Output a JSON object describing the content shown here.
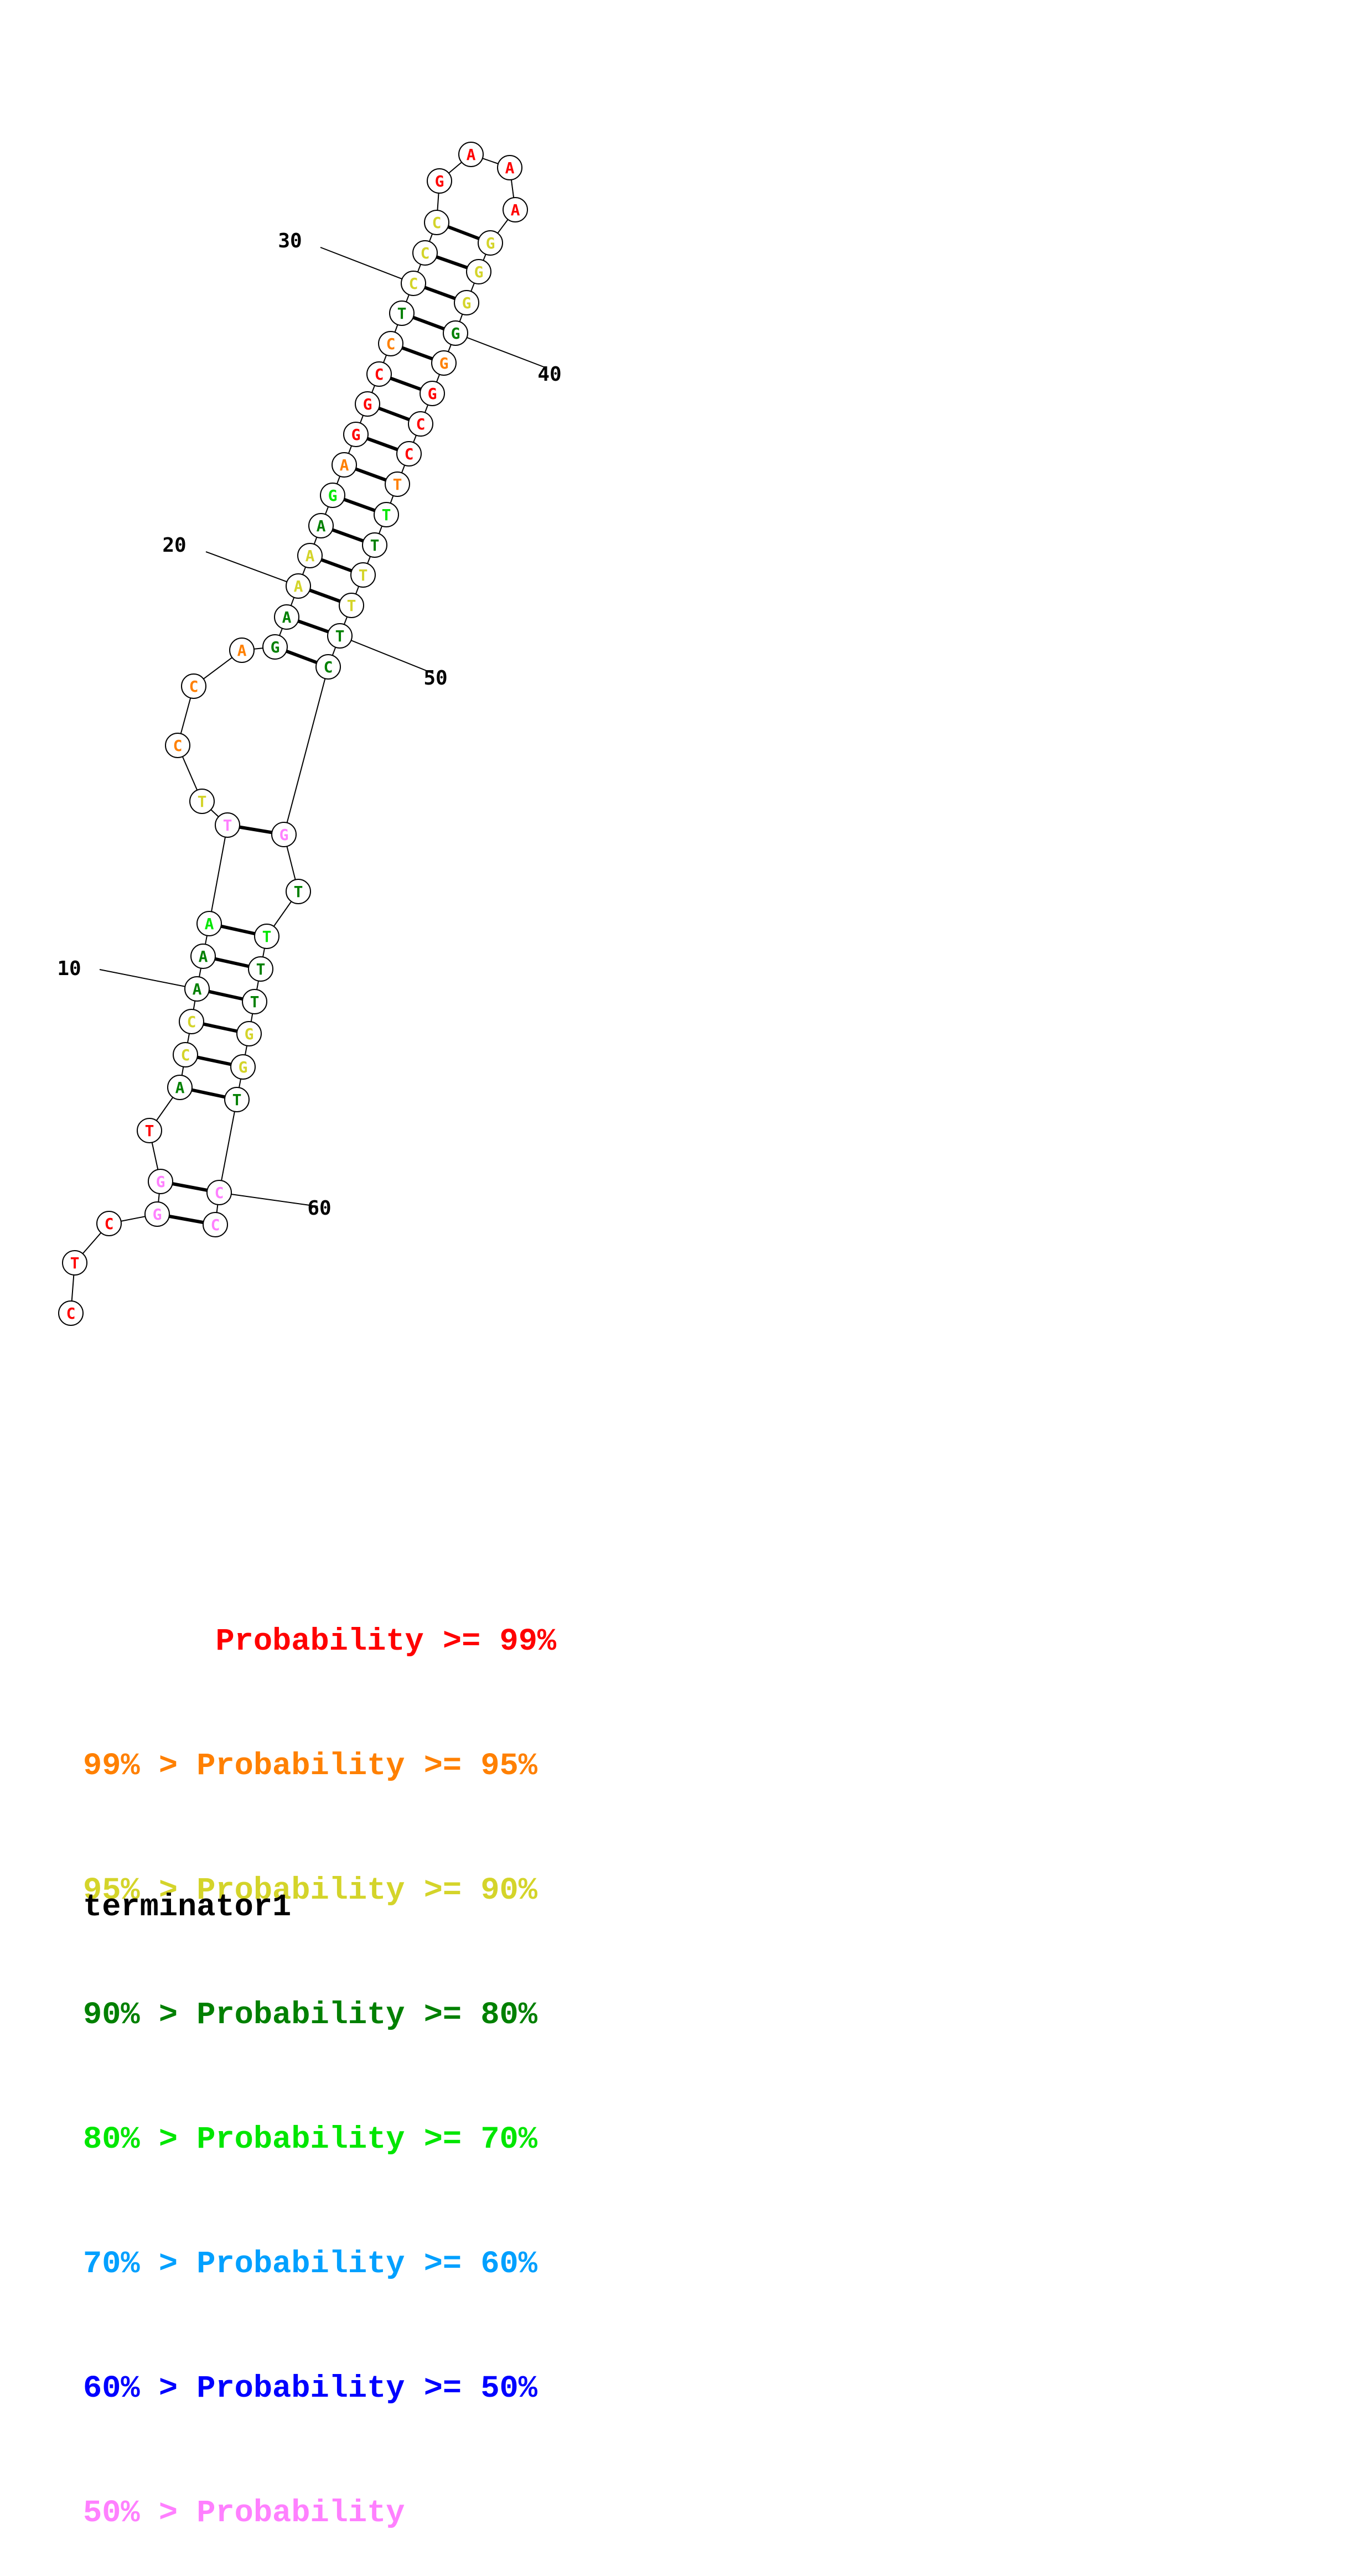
{
  "title": "terminator1",
  "colors": {
    "red": "#ff0000",
    "orange": "#ff8000",
    "yellow": "#d4d42a",
    "darkgreen": "#008000",
    "green": "#00e600",
    "cyan": "#00a0ff",
    "blue": "#0000ff",
    "pink": "#ff80ff"
  },
  "legend": [
    {
      "text": "       Probability >= 99%",
      "color": "red"
    },
    {
      "text": "99% > Probability >= 95%",
      "color": "orange"
    },
    {
      "text": "95% > Probability >= 90%",
      "color": "yellow"
    },
    {
      "text": "90% > Probability >= 80%",
      "color": "darkgreen"
    },
    {
      "text": "80% > Probability >= 70%",
      "color": "green"
    },
    {
      "text": "70% > Probability >= 60%",
      "color": "cyan"
    },
    {
      "text": "60% > Probability >= 50%",
      "color": "blue"
    },
    {
      "text": "50% > Probability",
      "color": "pink"
    }
  ],
  "nucleotides": [
    {
      "n": 1,
      "base": "C",
      "color": "red"
    },
    {
      "n": 2,
      "base": "T",
      "color": "red"
    },
    {
      "n": 3,
      "base": "C",
      "color": "red"
    },
    {
      "n": 4,
      "base": "G",
      "color": "pink"
    },
    {
      "n": 5,
      "base": "G",
      "color": "pink"
    },
    {
      "n": 6,
      "base": "T",
      "color": "red"
    },
    {
      "n": 7,
      "base": "A",
      "color": "darkgreen"
    },
    {
      "n": 8,
      "base": "C",
      "color": "yellow"
    },
    {
      "n": 9,
      "base": "C",
      "color": "yellow"
    },
    {
      "n": 10,
      "base": "A",
      "color": "darkgreen"
    },
    {
      "n": 11,
      "base": "A",
      "color": "darkgreen"
    },
    {
      "n": 12,
      "base": "A",
      "color": "green"
    },
    {
      "n": 13,
      "base": "T",
      "color": "pink"
    },
    {
      "n": 14,
      "base": "T",
      "color": "yellow"
    },
    {
      "n": 15,
      "base": "C",
      "color": "orange"
    },
    {
      "n": 16,
      "base": "C",
      "color": "orange"
    },
    {
      "n": 17,
      "base": "A",
      "color": "orange"
    },
    {
      "n": 18,
      "base": "G",
      "color": "darkgreen"
    },
    {
      "n": 19,
      "base": "A",
      "color": "darkgreen"
    },
    {
      "n": 20,
      "base": "A",
      "color": "yellow"
    },
    {
      "n": 21,
      "base": "A",
      "color": "yellow"
    },
    {
      "n": 22,
      "base": "A",
      "color": "darkgreen"
    },
    {
      "n": 23,
      "base": "G",
      "color": "green"
    },
    {
      "n": 24,
      "base": "A",
      "color": "orange"
    },
    {
      "n": 25,
      "base": "G",
      "color": "red"
    },
    {
      "n": 26,
      "base": "G",
      "color": "red"
    },
    {
      "n": 27,
      "base": "C",
      "color": "red"
    },
    {
      "n": 28,
      "base": "C",
      "color": "orange"
    },
    {
      "n": 29,
      "base": "T",
      "color": "darkgreen"
    },
    {
      "n": 30,
      "base": "C",
      "color": "yellow"
    },
    {
      "n": 31,
      "base": "C",
      "color": "yellow"
    },
    {
      "n": 32,
      "base": "C",
      "color": "yellow"
    },
    {
      "n": 33,
      "base": "G",
      "color": "red"
    },
    {
      "n": 34,
      "base": "A",
      "color": "red"
    },
    {
      "n": 35,
      "base": "A",
      "color": "red"
    },
    {
      "n": 36,
      "base": "A",
      "color": "red"
    },
    {
      "n": 37,
      "base": "G",
      "color": "yellow"
    },
    {
      "n": 38,
      "base": "G",
      "color": "yellow"
    },
    {
      "n": 39,
      "base": "G",
      "color": "yellow"
    },
    {
      "n": 40,
      "base": "G",
      "color": "darkgreen"
    },
    {
      "n": 41,
      "base": "G",
      "color": "orange"
    },
    {
      "n": 42,
      "base": "G",
      "color": "red"
    },
    {
      "n": 43,
      "base": "C",
      "color": "red"
    },
    {
      "n": 44,
      "base": "C",
      "color": "red"
    },
    {
      "n": 45,
      "base": "T",
      "color": "orange"
    },
    {
      "n": 46,
      "base": "T",
      "color": "green"
    },
    {
      "n": 47,
      "base": "T",
      "color": "darkgreen"
    },
    {
      "n": 48,
      "base": "T",
      "color": "yellow"
    },
    {
      "n": 49,
      "base": "T",
      "color": "yellow"
    },
    {
      "n": 50,
      "base": "T",
      "color": "darkgreen"
    },
    {
      "n": 51,
      "base": "C",
      "color": "darkgreen"
    },
    {
      "n": 52,
      "base": "G",
      "color": "pink"
    },
    {
      "n": 53,
      "base": "T",
      "color": "darkgreen"
    },
    {
      "n": 54,
      "base": "T",
      "color": "green"
    },
    {
      "n": 55,
      "base": "T",
      "color": "darkgreen"
    },
    {
      "n": 56,
      "base": "T",
      "color": "darkgreen"
    },
    {
      "n": 57,
      "base": "G",
      "color": "yellow"
    },
    {
      "n": 58,
      "base": "G",
      "color": "yellow"
    },
    {
      "n": 59,
      "base": "T",
      "color": "darkgreen"
    },
    {
      "n": 60,
      "base": "C",
      "color": "pink"
    },
    {
      "n": 61,
      "base": "C",
      "color": "pink"
    }
  ],
  "pairs": [
    [
      4,
      61
    ],
    [
      5,
      60
    ],
    [
      7,
      59
    ],
    [
      8,
      58
    ],
    [
      9,
      57
    ],
    [
      10,
      56
    ],
    [
      11,
      55
    ],
    [
      12,
      54
    ],
    [
      13,
      52
    ],
    [
      18,
      51
    ],
    [
      19,
      50
    ],
    [
      20,
      49
    ],
    [
      21,
      48
    ],
    [
      22,
      47
    ],
    [
      23,
      46
    ],
    [
      24,
      45
    ],
    [
      25,
      44
    ],
    [
      26,
      43
    ],
    [
      27,
      42
    ],
    [
      28,
      41
    ],
    [
      29,
      40
    ],
    [
      30,
      39
    ],
    [
      31,
      38
    ],
    [
      32,
      37
    ]
  ],
  "position_labels": [
    {
      "n": 10,
      "text": "10"
    },
    {
      "n": 20,
      "text": "20"
    },
    {
      "n": 30,
      "text": "30"
    },
    {
      "n": 40,
      "text": "40"
    },
    {
      "n": 50,
      "text": "50"
    },
    {
      "n": 60,
      "text": "60"
    }
  ]
}
